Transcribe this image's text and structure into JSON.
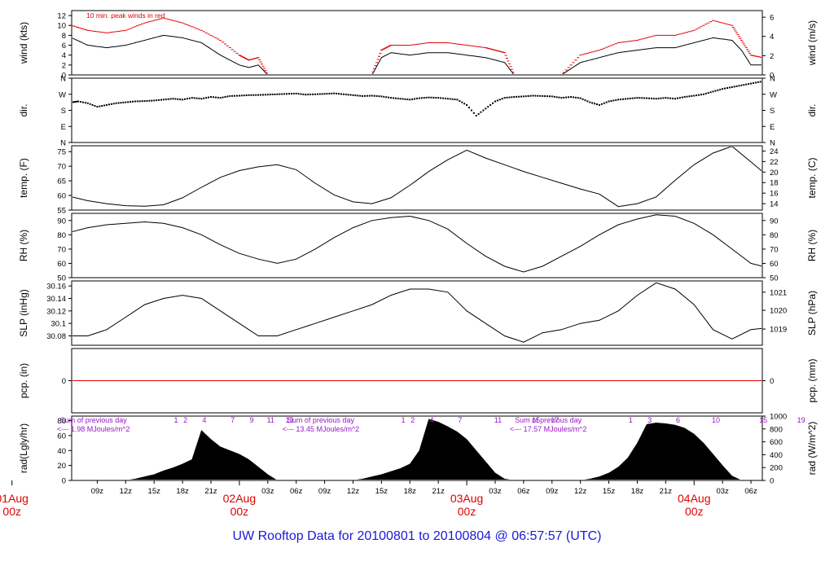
{
  "title": "UW Rooftop Data for 20100801  to  20100804 @ 06:57:57  (UTC)",
  "colors": {
    "red": "#e00000",
    "purple": "#9a16c9",
    "blue": "#1a1ad8",
    "ink": "#000000"
  },
  "time_axis": {
    "hour_ticks": [
      {
        "t": 9,
        "label": "09z"
      },
      {
        "t": 12,
        "label": "12z"
      },
      {
        "t": 15,
        "label": "15z"
      },
      {
        "t": 18,
        "label": "18z"
      },
      {
        "t": 21,
        "label": "21z"
      },
      {
        "t": 27,
        "label": "03z"
      },
      {
        "t": 30,
        "label": "06z"
      },
      {
        "t": 33,
        "label": "09z"
      },
      {
        "t": 36,
        "label": "12z"
      },
      {
        "t": 39,
        "label": "15z"
      },
      {
        "t": 42,
        "label": "18z"
      },
      {
        "t": 45,
        "label": "21z"
      },
      {
        "t": 51,
        "label": "03z"
      },
      {
        "t": 54,
        "label": "06z"
      },
      {
        "t": 57,
        "label": "09z"
      },
      {
        "t": 60,
        "label": "12z"
      },
      {
        "t": 63,
        "label": "15z"
      },
      {
        "t": 66,
        "label": "18z"
      },
      {
        "t": 69,
        "label": "21z"
      },
      {
        "t": 75,
        "label": "03z"
      },
      {
        "t": 78,
        "label": "06z"
      }
    ],
    "day_ticks": [
      {
        "t": 0,
        "label": "01Aug",
        "sub": "00z"
      },
      {
        "t": 24,
        "label": "02Aug",
        "sub": "00z"
      },
      {
        "t": 48,
        "label": "03Aug",
        "sub": "00z"
      },
      {
        "t": 72,
        "label": "04Aug",
        "sub": "00z"
      }
    ],
    "start_hour": 6.3,
    "end_hour": 79.2
  },
  "chart_data": [
    {
      "type": "line",
      "id": "wind",
      "ylabel": "wind (kts)",
      "ylabel_right": "wind (m/s)",
      "ylim": [
        0,
        13
      ],
      "yticks": [
        0,
        2,
        4,
        6,
        8,
        10,
        12
      ],
      "yticks_right": [
        {
          "v": 0,
          "label": "0"
        },
        {
          "v": 3.89,
          "label": "2"
        },
        {
          "v": 7.78,
          "label": "4"
        },
        {
          "v": 11.66,
          "label": "6"
        }
      ],
      "annotation": "10 min. peak winds in red",
      "series": [
        {
          "role": "mean",
          "x": [
            6.3,
            8,
            10,
            12,
            14,
            16,
            18,
            20,
            22,
            24,
            25,
            26,
            27,
            29,
            31,
            33,
            35,
            37,
            38,
            39,
            40,
            42,
            44,
            46,
            48,
            50,
            51,
            52,
            53,
            54,
            56,
            58,
            60,
            62,
            64,
            66,
            68,
            70,
            72,
            74,
            76,
            77,
            78,
            79.2
          ],
          "y": [
            7.5,
            6,
            5.5,
            6,
            7,
            8,
            7.5,
            6.5,
            4,
            2,
            1.5,
            2,
            0,
            0,
            0,
            0,
            0,
            0,
            0,
            3.5,
            4.5,
            4,
            4.5,
            4.5,
            4,
            3.5,
            3,
            2.5,
            0,
            0,
            0,
            0,
            2.5,
            3.5,
            4.5,
            5,
            5.5,
            5.5,
            6.5,
            7.5,
            7,
            5,
            2,
            2
          ]
        },
        {
          "role": "peak",
          "x": [
            6.3,
            8,
            10,
            12,
            14,
            16,
            18,
            20,
            22,
            24,
            25,
            26,
            27,
            29,
            31,
            33,
            35,
            37,
            38,
            39,
            40,
            42,
            44,
            46,
            48,
            50,
            51,
            52,
            53,
            54,
            56,
            58,
            60,
            62,
            64,
            66,
            68,
            70,
            72,
            74,
            76,
            77,
            78,
            79.2
          ],
          "y": [
            10,
            9,
            8.5,
            9,
            10.5,
            11.5,
            10.5,
            9,
            7,
            4,
            3,
            3.5,
            0,
            0,
            0,
            0,
            0,
            0,
            0,
            5,
            6,
            6,
            6.5,
            6.5,
            6,
            5.5,
            5,
            4.5,
            0,
            0,
            0,
            0,
            4,
            5,
            6.5,
            7,
            8,
            8,
            9,
            11,
            10,
            7,
            4,
            3.5
          ]
        }
      ]
    },
    {
      "type": "scatter",
      "id": "dir",
      "ylabel": "dir.",
      "ylabel_right": "dir.",
      "ylim": [
        0,
        360
      ],
      "ycats": [
        {
          "v": 0,
          "label": "N"
        },
        {
          "v": 90,
          "label": "E"
        },
        {
          "v": 180,
          "label": "S"
        },
        {
          "v": 270,
          "label": "W"
        },
        {
          "v": 360,
          "label": "N"
        }
      ],
      "x": [
        6.3,
        7,
        8,
        9,
        10,
        11,
        12,
        13,
        14,
        15,
        16,
        17,
        18,
        19,
        20,
        21,
        22,
        23,
        24,
        25,
        26,
        27,
        28,
        29,
        30,
        31,
        32,
        33,
        34,
        35,
        36,
        37,
        38,
        39,
        40,
        41,
        42,
        43,
        44,
        45,
        46,
        47,
        48,
        49,
        50,
        51,
        52,
        53,
        54,
        55,
        56,
        57,
        58,
        59,
        60,
        61,
        62,
        63,
        64,
        65,
        66,
        67,
        68,
        69,
        70,
        71,
        72,
        73,
        74,
        75,
        76,
        77,
        78,
        79
      ],
      "y": [
        225,
        230,
        220,
        200,
        210,
        220,
        225,
        230,
        232,
        235,
        240,
        245,
        240,
        250,
        245,
        255,
        250,
        260,
        262,
        265,
        266,
        268,
        270,
        272,
        274,
        268,
        270,
        272,
        275,
        270,
        265,
        260,
        262,
        258,
        250,
        245,
        240,
        248,
        252,
        250,
        245,
        240,
        210,
        150,
        190,
        230,
        250,
        255,
        258,
        262,
        260,
        258,
        250,
        255,
        248,
        225,
        210,
        230,
        240,
        245,
        250,
        248,
        245,
        250,
        245,
        255,
        262,
        270,
        285,
        300,
        310,
        320,
        330,
        340
      ]
    },
    {
      "type": "line",
      "id": "temp",
      "ylabel": "temp. (F)",
      "ylabel_right": "temp. (C)",
      "ylim": [
        55,
        77
      ],
      "yticks": [
        55,
        60,
        65,
        70,
        75
      ],
      "yticks_right": [
        {
          "v": 57.2,
          "label": "14"
        },
        {
          "v": 60.8,
          "label": "16"
        },
        {
          "v": 64.4,
          "label": "18"
        },
        {
          "v": 68.0,
          "label": "20"
        },
        {
          "v": 71.6,
          "label": "22"
        },
        {
          "v": 75.2,
          "label": "24"
        }
      ],
      "x": [
        6.3,
        8,
        10,
        12,
        14,
        16,
        18,
        20,
        22,
        24,
        26,
        28,
        30,
        32,
        34,
        36,
        38,
        40,
        42,
        44,
        46,
        48,
        50,
        52,
        54,
        56,
        58,
        60,
        62,
        64,
        66,
        68,
        70,
        72,
        74,
        76,
        78,
        79.2
      ],
      "y": [
        59.5,
        58.2,
        57.2,
        56.5,
        56.3,
        56.8,
        59.2,
        62.8,
        66.2,
        68.5,
        69.8,
        70.5,
        68.8,
        64.2,
        60.2,
        57.8,
        57.2,
        59.2,
        63.5,
        68.2,
        72.2,
        75.5,
        72.8,
        70.5,
        68.2,
        66.2,
        64.2,
        62.2,
        60.5,
        56.2,
        57.2,
        59.5,
        65.2,
        70.5,
        74.5,
        76.8,
        71.5,
        68.2
      ]
    },
    {
      "type": "line",
      "id": "rh",
      "ylabel": "RH (%)",
      "ylabel_right": "RH (%)",
      "ylim": [
        50,
        95
      ],
      "yticks": [
        50,
        60,
        70,
        80,
        90
      ],
      "yticks_right": [
        {
          "v": 50,
          "label": "50"
        },
        {
          "v": 60,
          "label": "60"
        },
        {
          "v": 70,
          "label": "70"
        },
        {
          "v": 80,
          "label": "80"
        },
        {
          "v": 90,
          "label": "90"
        }
      ],
      "x": [
        6.3,
        8,
        10,
        12,
        14,
        16,
        18,
        20,
        22,
        24,
        26,
        28,
        30,
        32,
        34,
        36,
        38,
        40,
        42,
        44,
        46,
        48,
        50,
        52,
        54,
        56,
        58,
        60,
        62,
        64,
        66,
        68,
        70,
        72,
        74,
        76,
        78,
        79.2
      ],
      "y": [
        82,
        85,
        87,
        88,
        89,
        88,
        85,
        80,
        73,
        67,
        63,
        60,
        63,
        70,
        78,
        85,
        90,
        92,
        93,
        90,
        84,
        74,
        65,
        58,
        54,
        58,
        65,
        72,
        80,
        87,
        91,
        94,
        93,
        88,
        80,
        70,
        60,
        58
      ]
    },
    {
      "type": "line",
      "id": "slp",
      "ylabel": "SLP (inHg)",
      "ylabel_right": "SLP (hPa)",
      "ylim": [
        30.065,
        30.168
      ],
      "yticks": [
        30.08,
        30.1,
        30.12,
        30.14,
        30.16
      ],
      "yticks_right": [
        {
          "v": 30.091,
          "label": "1019"
        },
        {
          "v": 30.121,
          "label": "1020"
        },
        {
          "v": 30.15,
          "label": "1021"
        }
      ],
      "x": [
        6.3,
        8,
        10,
        12,
        14,
        16,
        18,
        20,
        22,
        24,
        26,
        28,
        30,
        32,
        34,
        36,
        38,
        40,
        42,
        44,
        46,
        48,
        50,
        52,
        54,
        56,
        58,
        60,
        62,
        64,
        66,
        68,
        70,
        72,
        74,
        76,
        78,
        79.2
      ],
      "y": [
        30.08,
        30.08,
        30.09,
        30.11,
        30.13,
        30.14,
        30.145,
        30.14,
        30.12,
        30.1,
        30.08,
        30.08,
        30.09,
        30.1,
        30.11,
        30.12,
        30.13,
        30.145,
        30.155,
        30.155,
        30.15,
        30.12,
        30.1,
        30.08,
        30.07,
        30.085,
        30.09,
        30.1,
        30.105,
        30.12,
        30.145,
        30.165,
        30.155,
        30.13,
        30.09,
        30.075,
        30.09,
        30.092
      ]
    },
    {
      "type": "line",
      "id": "pcp",
      "ylabel": "pcp. (in)",
      "ylabel_right": "pcp. (mm)",
      "ylim": [
        -1,
        1
      ],
      "yticks": [
        0
      ],
      "yticks_right": [
        {
          "v": 0,
          "label": "0"
        }
      ],
      "x": [
        6.3,
        79.2
      ],
      "y": [
        0,
        0
      ]
    },
    {
      "type": "area",
      "id": "rad",
      "ylabel": "rad(Lgly/hr)",
      "ylabel_right": "rad (W/m^2)",
      "ylim": [
        0,
        86
      ],
      "yticks": [
        0,
        20,
        40,
        60,
        80
      ],
      "yticks_right": [
        {
          "v": 0,
          "label": "0"
        },
        {
          "v": 17.2,
          "label": "200"
        },
        {
          "v": 34.4,
          "label": "400"
        },
        {
          "v": 51.6,
          "label": "600"
        },
        {
          "v": 68.8,
          "label": "800"
        },
        {
          "v": 86,
          "label": "1000"
        }
      ],
      "x": [
        6.3,
        12,
        13,
        14,
        15,
        16,
        17,
        18,
        19,
        20,
        21,
        22,
        23,
        24,
        25,
        26,
        27,
        28,
        29,
        30,
        31,
        32,
        33,
        34,
        35,
        36,
        37,
        38,
        39,
        40,
        41,
        42,
        43,
        44,
        45,
        46,
        47,
        48,
        49,
        50,
        51,
        52,
        53,
        54,
        55,
        56,
        57,
        58,
        59,
        60,
        61,
        62,
        63,
        64,
        65,
        66,
        67,
        68,
        69,
        70,
        71,
        72,
        73,
        74,
        75,
        76,
        77,
        78,
        79.2
      ],
      "y": [
        0,
        0,
        2,
        5,
        8,
        13,
        17,
        22,
        28,
        67,
        55,
        45,
        40,
        35,
        28,
        18,
        8,
        0,
        0,
        0,
        0,
        0,
        0,
        0,
        0,
        0,
        2,
        5,
        8,
        12,
        16,
        22,
        40,
        82,
        78,
        72,
        65,
        55,
        40,
        25,
        10,
        2,
        0,
        0,
        0,
        0,
        0,
        0,
        0,
        0,
        2,
        5,
        10,
        18,
        30,
        50,
        75,
        77,
        76,
        74,
        70,
        62,
        50,
        35,
        20,
        6,
        0,
        0,
        0
      ]
    }
  ],
  "hour_markers": [
    {
      "hours": [
        "1",
        "2",
        "4",
        "7",
        "9",
        "11",
        "13"
      ],
      "t0": 16.3
    },
    {
      "hours": [
        "1",
        "2",
        "4",
        "7",
        "11",
        "15",
        "17"
      ],
      "t0": 40.3
    },
    {
      "hours": [
        "1",
        "3",
        "6",
        "10",
        "15",
        "19"
      ],
      "t0": 64.3
    }
  ],
  "daily_sums": [
    {
      "t": 8.6,
      "line1": "Sum of previous day",
      "line2": "<--- 1.98 MJoules/m^2"
    },
    {
      "t": 32.6,
      "line1": "Sum of previous day",
      "line2": "<--- 13.45 MJoules/m^2"
    },
    {
      "t": 56.6,
      "line1": "Sum of previous day",
      "line2": "<--- 17.57 MJoules/m^2"
    }
  ]
}
